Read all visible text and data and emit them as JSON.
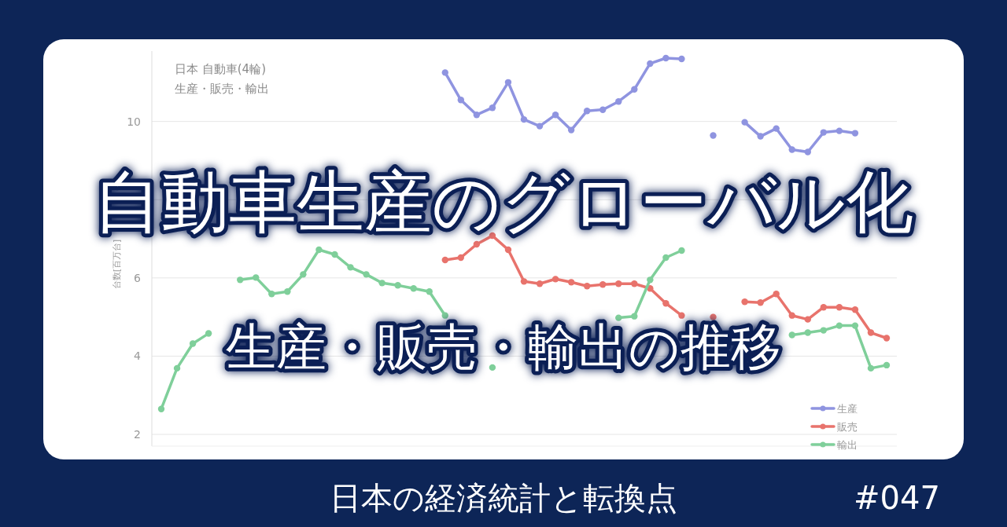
{
  "chart_data": {
    "type": "line",
    "title": "自動車生産のグローバル化",
    "subtitle": "生産・販売・輸出の推移",
    "ylabel": "台数[百万台]",
    "annotations": [
      "日本 自動車(4輪)",
      "生産・販売・輸出",
      "日本の経済統計と転換点",
      "#047"
    ],
    "categories": [
      null,
      null,
      null,
      null,
      null,
      null,
      null,
      null,
      null,
      null,
      null,
      null,
      null,
      null,
      null,
      null,
      null,
      null,
      null,
      null,
      null,
      null,
      null,
      null,
      null,
      null,
      null,
      null,
      null,
      null,
      null,
      null,
      null,
      null,
      null,
      null,
      null,
      null,
      null,
      null,
      null,
      null,
      null,
      null,
      null,
      null,
      null
    ],
    "series": [
      {
        "name": "生産",
        "color": "#8f94e0",
        "values": [
          null,
          null,
          null,
          null,
          null,
          null,
          null,
          null,
          null,
          null,
          null,
          null,
          null,
          null,
          null,
          null,
          null,
          null,
          11.25,
          10.55,
          10.17,
          10.35,
          11.0,
          10.05,
          9.88,
          10.17,
          9.78,
          10.27,
          10.3,
          10.51,
          10.82,
          11.48,
          11.62,
          11.6,
          null,
          9.64,
          null,
          9.98,
          9.62,
          9.82,
          9.28,
          9.22,
          9.72,
          9.76,
          9.7,
          null,
          null
        ]
      },
      {
        "name": "販売",
        "color": "#e8736c",
        "values": [
          null,
          null,
          null,
          null,
          null,
          null,
          null,
          null,
          null,
          null,
          null,
          null,
          null,
          null,
          null,
          null,
          null,
          null,
          6.46,
          6.52,
          6.86,
          7.08,
          6.72,
          5.91,
          5.85,
          5.97,
          5.89,
          5.79,
          5.83,
          5.85,
          5.85,
          5.73,
          5.35,
          5.04,
          null,
          5.0,
          null,
          5.39,
          5.37,
          5.59,
          5.04,
          4.94,
          5.25,
          5.25,
          5.19,
          4.6,
          4.46
        ]
      },
      {
        "name": "輸出",
        "color": "#7fcf9a",
        "values": [
          2.65,
          3.69,
          4.32,
          4.58,
          null,
          5.95,
          6.01,
          5.59,
          5.65,
          6.09,
          6.72,
          6.6,
          6.27,
          6.09,
          5.87,
          5.81,
          5.73,
          5.65,
          5.04,
          null,
          null,
          3.71,
          null,
          null,
          null,
          null,
          null,
          null,
          null,
          4.98,
          5.02,
          5.95,
          6.52,
          6.7,
          null,
          null,
          null,
          null,
          null,
          null,
          4.54,
          4.6,
          4.66,
          4.78,
          4.78,
          3.69,
          3.77
        ]
      }
    ],
    "ylim": [
      1.7,
      11.8
    ],
    "yticks": [
      2,
      4,
      6,
      {
        "value": 8,
        "label": null
      },
      10
    ],
    "grid": "y",
    "legend": "bottom right",
    "marker": "circle"
  }
}
